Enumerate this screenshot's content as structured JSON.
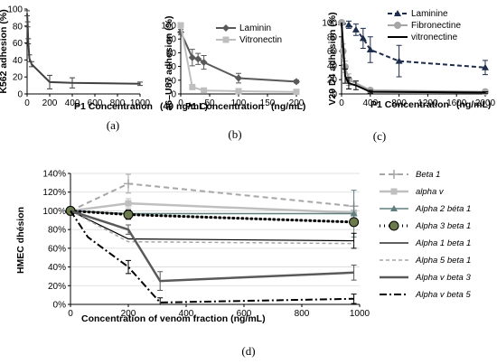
{
  "chart_data": [
    {
      "id": "a",
      "type": "line",
      "caption": "(a)",
      "xlabel": "P1 Concentration",
      "xlabel_unit": "(40 ng/mL)",
      "ylabel": "K562 adhesion (%)",
      "xlim": [
        0,
        1000
      ],
      "ylim": [
        0,
        100
      ],
      "xticks": [
        0,
        200,
        400,
        600,
        800,
        1000
      ],
      "yticks": [
        0,
        20,
        40,
        60,
        80,
        100
      ],
      "series": [
        {
          "color": "#404040",
          "x": [
            0,
            5,
            10,
            20,
            40,
            200,
            400,
            1000
          ],
          "y": [
            95,
            82,
            62,
            42,
            35,
            14,
            13,
            12
          ],
          "err": [
            3,
            3,
            3,
            4,
            3,
            8,
            6,
            2
          ]
        }
      ]
    },
    {
      "id": "b",
      "type": "line",
      "caption": "(b)",
      "xlabel": "P1 Concentration",
      "xlabel_unit": "(ng/mL)",
      "ylabel": "a6–U87 adhesion (%)",
      "xlim": [
        0,
        200
      ],
      "ylim": [
        0,
        100
      ],
      "xticks": [
        0,
        50,
        100,
        150,
        200
      ],
      "yticks": [
        0,
        20,
        40,
        60,
        80,
        100
      ],
      "legend_position": "top-right",
      "series": [
        {
          "name": "Laminin",
          "color": "#595959",
          "marker": "diamond",
          "x": [
            0,
            20,
            30,
            40,
            100,
            200
          ],
          "y": [
            90,
            53,
            51,
            46,
            23,
            18
          ],
          "err": [
            4,
            12,
            8,
            10,
            7,
            2
          ]
        },
        {
          "name": "Vitronectin",
          "color": "#bfbfbf",
          "marker": "square",
          "x": [
            0,
            20,
            40,
            100,
            200
          ],
          "y": [
            100,
            10,
            5,
            4,
            3
          ],
          "err": [
            0,
            3,
            2,
            1,
            1
          ]
        }
      ]
    },
    {
      "id": "c",
      "type": "line",
      "caption": "(c)",
      "xlabel": "P1 Concentration",
      "xlabel_unit": "(ng/mL)",
      "ylabel": "V29 D4 adhesion (%)",
      "xlim": [
        0,
        2000
      ],
      "ylim": [
        0,
        100
      ],
      "xticks": [
        0,
        400,
        800,
        1200,
        1600,
        2000
      ],
      "yticks": [
        0,
        20,
        40,
        60,
        80,
        100
      ],
      "legend_position": "top-right",
      "series": [
        {
          "name": "Laminine",
          "color": "#1f2d4d",
          "marker": "triangle",
          "dash": "5,3",
          "x": [
            0,
            100,
            200,
            300,
            400,
            800,
            2000
          ],
          "y": [
            100,
            97,
            90,
            78,
            62,
            46,
            37
          ],
          "err": [
            0,
            5,
            8,
            14,
            18,
            22,
            10
          ]
        },
        {
          "name": "Fibronectine",
          "color": "#a6a6a6",
          "marker": "circle",
          "x": [
            0,
            20,
            50,
            100,
            400,
            2000
          ],
          "y": [
            100,
            60,
            38,
            20,
            5,
            3
          ],
          "err": [
            0,
            10,
            8,
            8,
            3,
            2
          ]
        },
        {
          "name": "vitronectine",
          "color": "#000000",
          "marker": "none",
          "x": [
            0,
            50,
            100,
            200,
            400,
            2000
          ],
          "y": [
            100,
            25,
            15,
            12,
            3,
            2
          ],
          "err": [
            0,
            10,
            8,
            6,
            2,
            1
          ]
        }
      ]
    },
    {
      "id": "d",
      "type": "line",
      "caption": "(d)",
      "xlabel": "Concentration of venom fraction (ng/mL)",
      "ylabel": "HMEC dhésion",
      "xlim": [
        0,
        1000
      ],
      "ylim": [
        0,
        140
      ],
      "xticks": [
        0,
        200,
        400,
        600,
        800,
        1000
      ],
      "yticks": [
        0,
        20,
        40,
        60,
        80,
        100,
        120,
        140
      ],
      "ytick_suffix": "%",
      "legend_position": "right",
      "series": [
        {
          "name": "Beta 1",
          "italic": true,
          "color": "#a6a6a6",
          "marker": "plus",
          "dash": "6,4",
          "width": 2,
          "x": [
            0,
            200,
            980
          ],
          "y": [
            100,
            129,
            105
          ],
          "err": [
            0,
            10,
            0
          ]
        },
        {
          "name": "alpha v",
          "italic": true,
          "color": "#bfbfbf",
          "marker": "square",
          "dash": "",
          "width": 2.5,
          "x": [
            0,
            200,
            980
          ],
          "y": [
            100,
            108,
            98
          ],
          "err": [
            0,
            5,
            2
          ]
        },
        {
          "name": "Alpha 2 béta 1",
          "italic": true,
          "color": "#5f7f7f",
          "marker": "triangle",
          "dash": "",
          "width": 1.5,
          "x": [
            0,
            200,
            980
          ],
          "y": [
            100,
            97,
            97
          ],
          "err": [
            0,
            3,
            25
          ]
        },
        {
          "name": "Alpha 3 beta 1",
          "italic": true,
          "color": "#000000",
          "marker": "bigdot",
          "dash": "1,4",
          "width": 3,
          "x": [
            0,
            200,
            980
          ],
          "y": [
            100,
            96,
            88
          ],
          "err": [
            0,
            5,
            0
          ]
        },
        {
          "name": "Alpha 1  beta 1",
          "italic": true,
          "color": "#000000",
          "marker": "none",
          "dash": "",
          "width": 1.2,
          "x": [
            0,
            200,
            980
          ],
          "y": [
            100,
            70,
            68
          ],
          "err": [
            0,
            0,
            8
          ]
        },
        {
          "name": "Alpha 5 beta 1",
          "italic": true,
          "color": "#a6a6a6",
          "marker": "none",
          "dash": "4,3",
          "width": 1.5,
          "x": [
            0,
            200,
            980
          ],
          "y": [
            100,
            67,
            65
          ],
          "err": [
            0,
            0,
            0
          ]
        },
        {
          "name": "Alpha v beta 3",
          "italic": true,
          "color": "#595959",
          "marker": "none",
          "dash": "",
          "width": 2.5,
          "x": [
            0,
            200,
            310,
            980
          ],
          "y": [
            100,
            80,
            25,
            34
          ],
          "err": [
            0,
            5,
            10,
            8
          ]
        },
        {
          "name": "Alpha v beta 5",
          "italic": true,
          "color": "#000000",
          "marker": "none",
          "dash": "8,3,2,3",
          "width": 2,
          "x": [
            0,
            60,
            200,
            310,
            980
          ],
          "y": [
            100,
            72,
            40,
            2,
            6
          ],
          "err": [
            0,
            0,
            7,
            5,
            5
          ]
        }
      ]
    }
  ]
}
